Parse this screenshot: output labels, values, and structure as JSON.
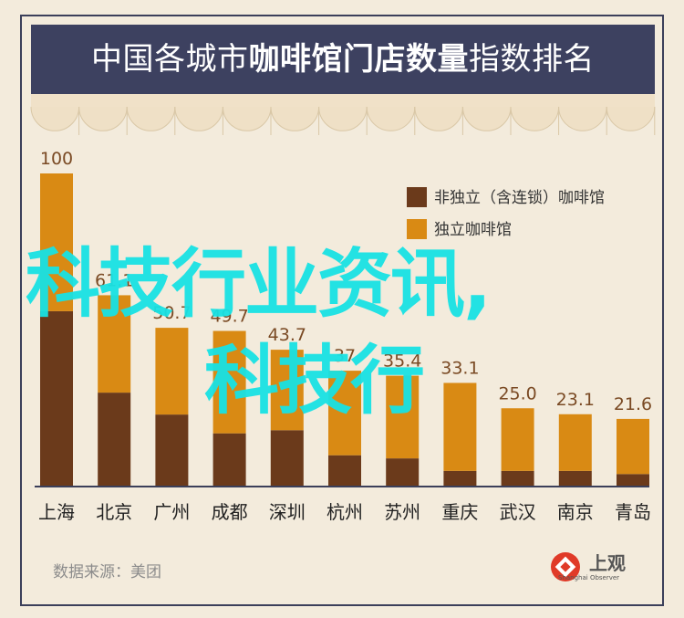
{
  "title": {
    "part1": "中国各城市",
    "part2": "咖啡馆门店数量",
    "part3": "指数排名"
  },
  "source": "数据来源：美团",
  "logo": {
    "name": "上观",
    "sub": "Shanghai Observer"
  },
  "watermark": {
    "line1": "科技行业资讯,",
    "line2": "科技行"
  },
  "colors": {
    "background": "#f3ebdc",
    "header": "#3d4160",
    "dark_series": "#6b3a1b",
    "light_series": "#d98a14",
    "value_label": "#7a4a24",
    "watermark": "#18e2e4"
  },
  "chart_data": {
    "type": "bar",
    "stacked": true,
    "categories": [
      "上海",
      "北京",
      "广州",
      "成都",
      "深圳",
      "杭州",
      "苏州",
      "重庆",
      "武汉",
      "南京",
      "青岛"
    ],
    "totals": [
      100,
      61.1,
      50.7,
      49.7,
      43.7,
      37,
      35.4,
      33.1,
      25.0,
      23.1,
      21.6
    ],
    "total_labels": [
      "100",
      "61.1",
      "50.7",
      "49.7",
      "43.7",
      "37",
      "35.4",
      "33.1",
      "25.0",
      "23.1",
      "21.6"
    ],
    "series": [
      {
        "name": "非独立（含连锁）咖啡馆",
        "values": [
          56,
          30,
          23,
          17,
          18,
          10,
          9,
          5,
          5,
          5,
          4
        ]
      },
      {
        "name": "独立咖啡馆",
        "values": [
          44,
          31.1,
          27.7,
          32.7,
          25.7,
          27,
          26.4,
          28.1,
          20.0,
          18.1,
          17.6
        ]
      }
    ],
    "ylim": [
      0,
      100
    ],
    "grid": false,
    "legend_position": "top-right"
  }
}
